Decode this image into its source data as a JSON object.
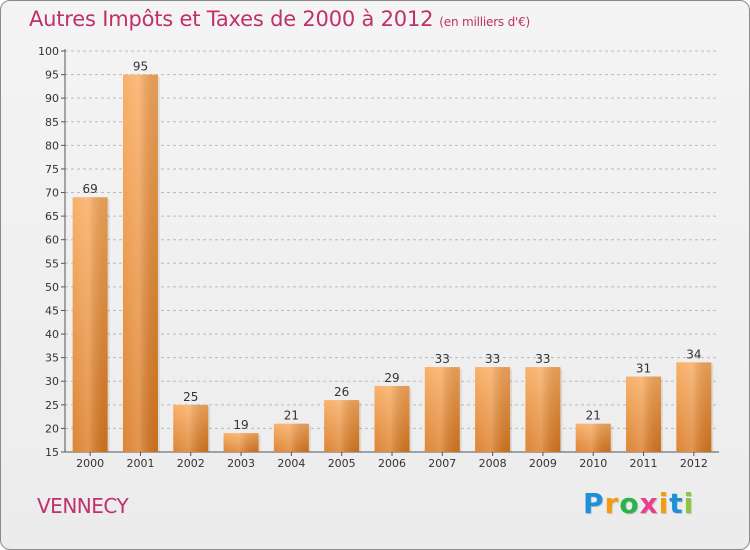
{
  "title": "Autres Impôts et Taxes de 2000 à 2012",
  "subtitle": "(en milliers d'€)",
  "commune": "VENNECY",
  "logo": {
    "letters": [
      "P",
      "r",
      "o",
      "x",
      "i",
      "t",
      "i"
    ],
    "colors": [
      "#1f8fd6",
      "#f39c12",
      "#2bb34a",
      "#e8408e",
      "#f39c12",
      "#1f8fd6",
      "#8cc63f"
    ]
  },
  "colors": {
    "bar_top": "#f8a85a",
    "bar_bottom": "#d9771e",
    "title": "#c0306a",
    "grid": "#bbbbbb"
  },
  "chart_data": {
    "type": "bar",
    "title": "Autres Impôts et Taxes de 2000 à 2012",
    "subtitle": "(en milliers d'€)",
    "categories": [
      "2000",
      "2001",
      "2002",
      "2003",
      "2004",
      "2005",
      "2006",
      "2007",
      "2008",
      "2009",
      "2010",
      "2011",
      "2012"
    ],
    "values": [
      69,
      95,
      25,
      19,
      21,
      26,
      29,
      33,
      33,
      33,
      21,
      31,
      34
    ],
    "ylim": [
      15,
      100
    ],
    "yticks": [
      15,
      20,
      25,
      30,
      35,
      40,
      45,
      50,
      55,
      60,
      65,
      70,
      75,
      80,
      85,
      90,
      95,
      100
    ],
    "grid": true,
    "data_labels": true
  }
}
